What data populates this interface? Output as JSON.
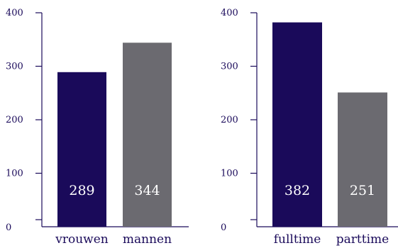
{
  "chart_data": [
    {
      "type": "bar",
      "categories": [
        "vrouwen",
        "mannen"
      ],
      "values": [
        289,
        344
      ],
      "colors": [
        "#1a0a5a",
        "#6b6a70"
      ],
      "ylim": [
        0,
        400
      ],
      "yticks": [
        0,
        100,
        200,
        300,
        400
      ],
      "ytick_labels": [
        "0",
        "100",
        "200",
        "300",
        "400"
      ],
      "grid": false,
      "title": "",
      "xlabel": "",
      "ylabel": ""
    },
    {
      "type": "bar",
      "categories": [
        "fulltime",
        "parttime"
      ],
      "values": [
        382,
        251
      ],
      "colors": [
        "#1a0a5a",
        "#6b6a70"
      ],
      "ylim": [
        0,
        400
      ],
      "yticks": [
        0,
        100,
        200,
        300,
        400
      ],
      "ytick_labels": [
        "0",
        "100",
        "200",
        "300",
        "400"
      ],
      "grid": false,
      "title": "",
      "xlabel": "",
      "ylabel": ""
    }
  ],
  "axis_color": "#1a0a5a"
}
